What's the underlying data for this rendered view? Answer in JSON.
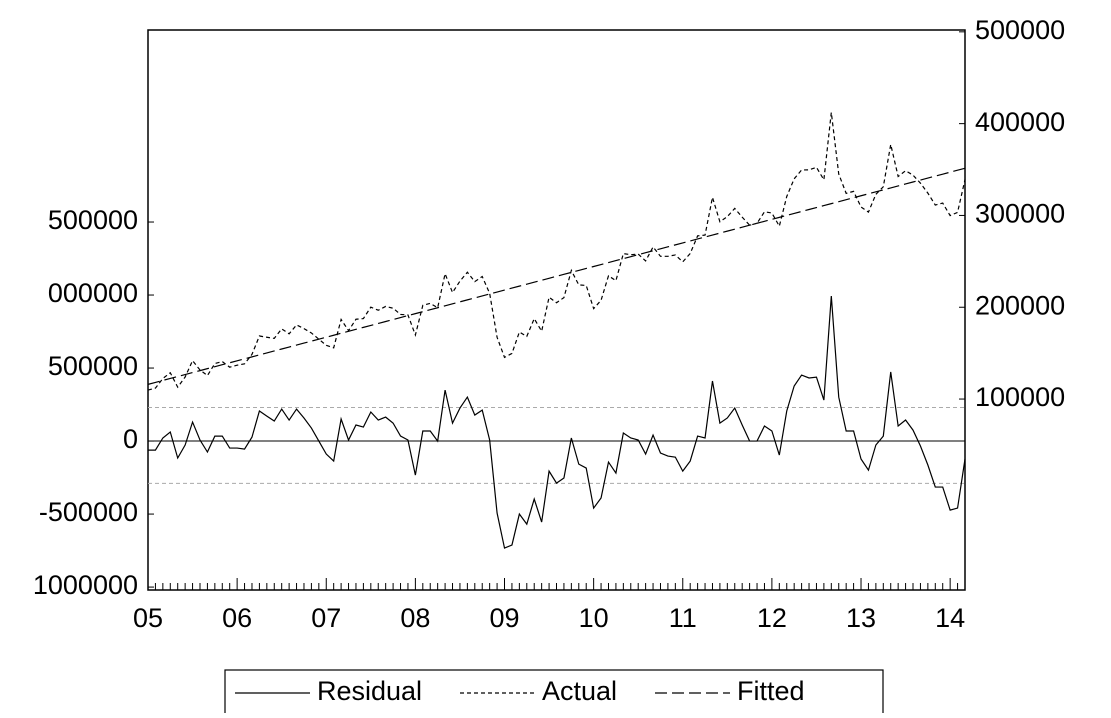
{
  "chart_data": {
    "type": "line",
    "categories": [
      "05",
      null,
      null,
      null,
      null,
      null,
      null,
      null,
      null,
      null,
      null,
      null,
      "06",
      null,
      null,
      null,
      null,
      null,
      null,
      null,
      null,
      null,
      null,
      null,
      "07",
      null,
      null,
      null,
      null,
      null,
      null,
      null,
      null,
      null,
      null,
      null,
      "08",
      null,
      null,
      null,
      null,
      null,
      null,
      null,
      null,
      null,
      null,
      null,
      "09",
      null,
      null,
      null,
      null,
      null,
      null,
      null,
      null,
      null,
      null,
      null,
      "10",
      null,
      null,
      null,
      null,
      null,
      null,
      null,
      null,
      null,
      null,
      null,
      "11",
      null,
      null,
      null,
      null,
      null,
      null,
      null,
      null,
      null,
      null,
      null,
      "12",
      null,
      null,
      null,
      null,
      null,
      null,
      null,
      null,
      null,
      null,
      null,
      "13",
      null,
      null,
      null,
      null,
      null,
      null,
      null,
      null,
      null,
      null,
      null,
      "14",
      null,
      null
    ],
    "series": [
      {
        "name": "Residual",
        "color": "#000000",
        "style": "solid",
        "axis": "y",
        "values": [
          -6200,
          -6200,
          2100,
          6200,
          -11600,
          -2700,
          13000,
          700,
          -7500,
          3400,
          3400,
          -4800,
          -4800,
          -5500,
          2700,
          20600,
          17100,
          13700,
          21900,
          14400,
          21900,
          15800,
          8900,
          0,
          -8900,
          -13700,
          15100,
          700,
          11000,
          9600,
          19900,
          14400,
          16400,
          12300,
          3400,
          700,
          -23300,
          6900,
          6900,
          0,
          34900,
          12300,
          22600,
          30100,
          17800,
          21200,
          700,
          -49300,
          -73300,
          -71200,
          -50000,
          -56900,
          -39700,
          -55500,
          -20600,
          -28800,
          -25300,
          2100,
          -15800,
          -18500,
          -45900,
          -39000,
          -14400,
          -21900,
          5500,
          2100,
          700,
          -8900,
          4100,
          -8200,
          -10300,
          -11000,
          -20600,
          -13700,
          3400,
          2100,
          41100,
          12300,
          15800,
          22600,
          11000,
          0,
          0,
          10300,
          6900,
          -9600,
          20600,
          37700,
          45200,
          43200,
          43800,
          28100,
          99300,
          30100,
          6900,
          6900,
          -12300,
          -19900,
          -2700,
          3400,
          47300,
          10300,
          14400,
          7500,
          -3400,
          -16400,
          -31500,
          -31500,
          -47300,
          -45900,
          -12300
        ]
      },
      {
        "name": "Actual",
        "color": "#000000",
        "style": "dotted",
        "axis": "y2",
        "values": [
          109800,
          111940,
          122380,
          128620,
          112960,
          124000,
          141840,
          131680,
          125620,
          138660,
          140800,
          134740,
          136880,
          138320,
          148660,
          168700,
          167340,
          166080,
          176420,
          171060,
          180700,
          176740,
          171980,
          165220,
          158460,
          155800,
          186740,
          174480,
          186920,
          187660,
          200100,
          196740,
          200880,
          198920,
          192160,
          191600,
          169740,
          202080,
          204220,
          199460,
          236500,
          216040,
          228480,
          238120,
          227960,
          233500,
          215140,
          167280,
          145420,
          149660,
          173000,
          168240,
          187580,
          173920,
          210960,
          204900,
          210540,
          240080,
          224320,
          223760,
          198500,
          207540,
          234280,
          228920,
          258460,
          257200,
          257940,
          250480,
          265620,
          255460,
          255500,
          256940,
          249480,
          258520,
          277760,
          278600,
          319740,
          293080,
          298720,
          307660,
          298200,
          289340,
          291480,
          303920,
          302660,
          288300,
          320640,
          339880,
          349520,
          349660,
          352400,
          338840,
          412180,
          345120,
          324060,
          326200,
          309140,
          303680,
          323020,
          331260,
          377300,
          342440,
          348680,
          343920,
          335160,
          324300,
          311340,
          313480,
          299820,
          303360,
          339100
        ]
      },
      {
        "name": "Fitted",
        "color": "#000000",
        "style": "dashed",
        "axis": "y2",
        "values": [
          116000,
          118140,
          120280,
          122420,
          124560,
          126700,
          128840,
          130980,
          133120,
          135260,
          137400,
          139540,
          141680,
          143820,
          145960,
          148100,
          150240,
          152380,
          154520,
          156660,
          158800,
          160940,
          163080,
          165220,
          167360,
          169500,
          171640,
          173780,
          175920,
          178060,
          180200,
          182340,
          184480,
          186620,
          188760,
          190900,
          193040,
          195180,
          197320,
          199460,
          201600,
          203740,
          205880,
          208020,
          210160,
          212300,
          214440,
          216580,
          218720,
          220860,
          223000,
          225140,
          227280,
          229420,
          231560,
          233700,
          235840,
          237980,
          240120,
          242260,
          244400,
          246540,
          248680,
          250820,
          252960,
          255100,
          257240,
          259380,
          261520,
          263660,
          265800,
          267940,
          270080,
          272220,
          274360,
          276500,
          278640,
          280780,
          282920,
          285060,
          287200,
          289340,
          291480,
          293620,
          295760,
          297900,
          300040,
          302180,
          304320,
          306460,
          308600,
          310740,
          312880,
          315020,
          317160,
          319300,
          321440,
          323580,
          325720,
          327860,
          330000,
          332140,
          334280,
          336420,
          338560,
          340700,
          342840,
          344980,
          347120,
          349260,
          351400
        ]
      }
    ],
    "reference_lines": [
      23000,
      -29000
    ],
    "ylim": [
      -102000,
      281500
    ],
    "yticks": [
      {
        "value": 150000,
        "label": "500000"
      },
      {
        "value": 100000,
        "label": "000000"
      },
      {
        "value": 50000,
        "label": "500000"
      },
      0,
      {
        "value": -50000,
        "label": "-500000"
      },
      {
        "value": -100000,
        "label": "1000000"
      }
    ],
    "y2lim": [
      -108000,
      502000
    ],
    "y2ticks": [
      500000,
      400000,
      300000,
      200000,
      100000
    ],
    "legend": "bottom"
  }
}
